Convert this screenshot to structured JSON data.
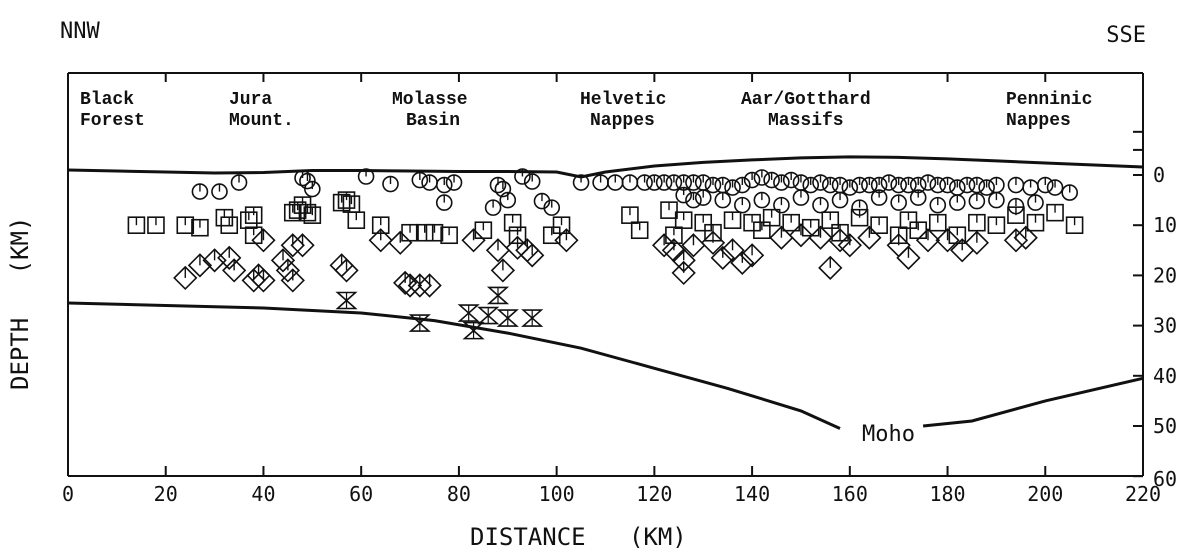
{
  "chart_data": {
    "type": "scatter",
    "title_left": "NNW",
    "title_right": "SSE",
    "xlabel": "DISTANCE   (KM)",
    "ylabel": "DEPTH   (KM)",
    "xlim": [
      0,
      220
    ],
    "ylim": [
      60,
      0
    ],
    "x_ticks": [
      "0",
      "20",
      "40",
      "60",
      "80",
      "100",
      "120",
      "140",
      "160",
      "180",
      "200",
      "220"
    ],
    "y_ticks": [
      "0",
      "10",
      "20",
      "30",
      "40",
      "50",
      "60"
    ],
    "y_tick_values": [
      0,
      10,
      20,
      30,
      40,
      50,
      60
    ],
    "x_tick_values": [
      0,
      20,
      40,
      60,
      80,
      100,
      120,
      140,
      160,
      180,
      200,
      220
    ],
    "regions": [
      {
        "line1": "Black",
        "line2": "Forest",
        "x": 9
      },
      {
        "line1": "Jura",
        "line2": "Mount.",
        "x": 38
      },
      {
        "line1": "Molasse",
        "line2": "Basin",
        "x": 76
      },
      {
        "line1": "Helvetic",
        "line2": "Nappes",
        "x": 114
      },
      {
        "line1": "Aar/Gotthard",
        "line2": "Massifs",
        "x": 156
      },
      {
        "line1": "Penninic",
        "line2": "Nappes",
        "x": 209
      }
    ],
    "moho_label": "Moho",
    "surface_line": [
      [
        0,
        -1
      ],
      [
        10,
        -0.8
      ],
      [
        20,
        -0.6
      ],
      [
        30,
        -0.4
      ],
      [
        40,
        -0.5
      ],
      [
        50,
        -0.9
      ],
      [
        60,
        -0.9
      ],
      [
        70,
        -0.8
      ],
      [
        80,
        -0.7
      ],
      [
        90,
        -0.7
      ],
      [
        100,
        -0.6
      ],
      [
        105,
        0.4
      ],
      [
        110,
        -0.6
      ],
      [
        120,
        -1.8
      ],
      [
        130,
        -2.5
      ],
      [
        140,
        -3
      ],
      [
        150,
        -3.4
      ],
      [
        160,
        -3.6
      ],
      [
        170,
        -3.5
      ],
      [
        180,
        -3.2
      ],
      [
        190,
        -2.8
      ],
      [
        200,
        -2.4
      ],
      [
        210,
        -2
      ],
      [
        220,
        -1.6
      ]
    ],
    "moho_line": [
      [
        0,
        25.5
      ],
      [
        20,
        26
      ],
      [
        40,
        26.5
      ],
      [
        60,
        27.5
      ],
      [
        75,
        29
      ],
      [
        90,
        31.5
      ],
      [
        105,
        34.5
      ],
      [
        120,
        38.5
      ],
      [
        135,
        42.5
      ],
      [
        150,
        47
      ],
      [
        158,
        50.5
      ],
      [
        175,
        50
      ],
      [
        185,
        49
      ],
      [
        200,
        45
      ],
      [
        220,
        40.5
      ]
    ],
    "series": [
      {
        "symbol": "circle",
        "points": [
          [
            27,
            3.3
          ],
          [
            31,
            3.3
          ],
          [
            35,
            1.5
          ],
          [
            48,
            0.6
          ],
          [
            49,
            1.2
          ],
          [
            50,
            2.8
          ],
          [
            61,
            0.3
          ],
          [
            66,
            1.8
          ],
          [
            72,
            1.0
          ],
          [
            74,
            1.5
          ],
          [
            77,
            2.0
          ],
          [
            79,
            1.5
          ],
          [
            77,
            5.5
          ],
          [
            88,
            2
          ],
          [
            89,
            2.8
          ],
          [
            93,
            0.3
          ],
          [
            95,
            1.3
          ],
          [
            87,
            6.5
          ],
          [
            90,
            5
          ],
          [
            97,
            5.2
          ],
          [
            99,
            6.5
          ],
          [
            105,
            1.5
          ],
          [
            109,
            1.5
          ],
          [
            112,
            1.5
          ],
          [
            115,
            1.5
          ],
          [
            118,
            1.5
          ],
          [
            120,
            1.5
          ],
          [
            122,
            1.5
          ],
          [
            124,
            1.5
          ],
          [
            126,
            1.5
          ],
          [
            128,
            1.5
          ],
          [
            130,
            1.5
          ],
          [
            132,
            2
          ],
          [
            134,
            2
          ],
          [
            136,
            2.5
          ],
          [
            138,
            2
          ],
          [
            140,
            1
          ],
          [
            142,
            0.5
          ],
          [
            144,
            1
          ],
          [
            146,
            1.5
          ],
          [
            148,
            1
          ],
          [
            150,
            1.5
          ],
          [
            152,
            2
          ],
          [
            154,
            1.5
          ],
          [
            156,
            2
          ],
          [
            158,
            2
          ],
          [
            160,
            2.5
          ],
          [
            162,
            2
          ],
          [
            164,
            2
          ],
          [
            166,
            2
          ],
          [
            168,
            1.5
          ],
          [
            170,
            2
          ],
          [
            172,
            2
          ],
          [
            174,
            2
          ],
          [
            176,
            1.5
          ],
          [
            178,
            2
          ],
          [
            180,
            2
          ],
          [
            182,
            2.5
          ],
          [
            184,
            2
          ],
          [
            186,
            2
          ],
          [
            188,
            2.5
          ],
          [
            190,
            2
          ],
          [
            194,
            2
          ],
          [
            197,
            2.5
          ],
          [
            200,
            2
          ],
          [
            202,
            2.5
          ],
          [
            205,
            3.5
          ],
          [
            126,
            4
          ],
          [
            128,
            5
          ],
          [
            130,
            4.5
          ],
          [
            134,
            5
          ],
          [
            138,
            6
          ],
          [
            142,
            5
          ],
          [
            146,
            6
          ],
          [
            150,
            4.5
          ],
          [
            154,
            6
          ],
          [
            158,
            5
          ],
          [
            162,
            6.5
          ],
          [
            166,
            4.5
          ],
          [
            170,
            5.5
          ],
          [
            174,
            4.5
          ],
          [
            178,
            6
          ],
          [
            182,
            5.5
          ],
          [
            186,
            5.2
          ],
          [
            190,
            5
          ],
          [
            194,
            6.2
          ],
          [
            198,
            5.5
          ]
        ]
      },
      {
        "symbol": "square",
        "points": [
          [
            14,
            10
          ],
          [
            18,
            10
          ],
          [
            24,
            10
          ],
          [
            27,
            10.5
          ],
          [
            32,
            8.5
          ],
          [
            33,
            10
          ],
          [
            37,
            9
          ],
          [
            38,
            8
          ],
          [
            38,
            12
          ],
          [
            46,
            7.5
          ],
          [
            47,
            7
          ],
          [
            48,
            6
          ],
          [
            49,
            7.5
          ],
          [
            50,
            8
          ],
          [
            56,
            5.5
          ],
          [
            57,
            5
          ],
          [
            58,
            5.8
          ],
          [
            59,
            9
          ],
          [
            64,
            10
          ],
          [
            70,
            11.5
          ],
          [
            73,
            11.5
          ],
          [
            75,
            11.5
          ],
          [
            78,
            12
          ],
          [
            85,
            11
          ],
          [
            91,
            9.5
          ],
          [
            92,
            12
          ],
          [
            99,
            12
          ],
          [
            101,
            10
          ],
          [
            115,
            8
          ],
          [
            117,
            11
          ],
          [
            123,
            7
          ],
          [
            124,
            12
          ],
          [
            126,
            9
          ],
          [
            130,
            9.5
          ],
          [
            132,
            11.5
          ],
          [
            136,
            9
          ],
          [
            140,
            9.5
          ],
          [
            142,
            11
          ],
          [
            144,
            8.5
          ],
          [
            148,
            9.5
          ],
          [
            152,
            10.5
          ],
          [
            156,
            9
          ],
          [
            158,
            11.5
          ],
          [
            162,
            8.5
          ],
          [
            166,
            10
          ],
          [
            170,
            12
          ],
          [
            172,
            9
          ],
          [
            174,
            11
          ],
          [
            178,
            9.5
          ],
          [
            182,
            12
          ],
          [
            186,
            9.5
          ],
          [
            190,
            10
          ],
          [
            194,
            8
          ],
          [
            198,
            9.5
          ],
          [
            202,
            7.5
          ],
          [
            206,
            10
          ]
        ]
      },
      {
        "symbol": "diamond",
        "points": [
          [
            24,
            20.5
          ],
          [
            27,
            18
          ],
          [
            30,
            17
          ],
          [
            33,
            16.5
          ],
          [
            34,
            19
          ],
          [
            38,
            21
          ],
          [
            39,
            20
          ],
          [
            40,
            13
          ],
          [
            40,
            21
          ],
          [
            44,
            17
          ],
          [
            45,
            19
          ],
          [
            46,
            14
          ],
          [
            46,
            21
          ],
          [
            48,
            14
          ],
          [
            56,
            18
          ],
          [
            57,
            19
          ],
          [
            64,
            13
          ],
          [
            68,
            13.5
          ],
          [
            69,
            21.5
          ],
          [
            70,
            22
          ],
          [
            72,
            22
          ],
          [
            74,
            22
          ],
          [
            83,
            13
          ],
          [
            88,
            15
          ],
          [
            89,
            19
          ],
          [
            92,
            14.5
          ],
          [
            94,
            15
          ],
          [
            95,
            16
          ],
          [
            102,
            13
          ],
          [
            122,
            14
          ],
          [
            124,
            15
          ],
          [
            126,
            17
          ],
          [
            126,
            19.5
          ],
          [
            128,
            14
          ],
          [
            132,
            13.5
          ],
          [
            134,
            16.5
          ],
          [
            136,
            15
          ],
          [
            138,
            17.5
          ],
          [
            140,
            16
          ],
          [
            146,
            12.5
          ],
          [
            150,
            12
          ],
          [
            154,
            12.5
          ],
          [
            156,
            18.5
          ],
          [
            158,
            13
          ],
          [
            160,
            14
          ],
          [
            164,
            12.5
          ],
          [
            170,
            14
          ],
          [
            172,
            16.5
          ],
          [
            176,
            13
          ],
          [
            180,
            13
          ],
          [
            183,
            15
          ],
          [
            186,
            13.5
          ],
          [
            194,
            13
          ],
          [
            196,
            12.5
          ]
        ]
      },
      {
        "symbol": "hourglass",
        "points": [
          [
            57,
            25
          ],
          [
            72,
            29.5
          ],
          [
            82,
            27.5
          ],
          [
            83,
            31
          ],
          [
            86,
            28
          ],
          [
            88,
            24
          ],
          [
            90,
            28.5
          ],
          [
            95,
            28.5
          ]
        ]
      }
    ]
  }
}
